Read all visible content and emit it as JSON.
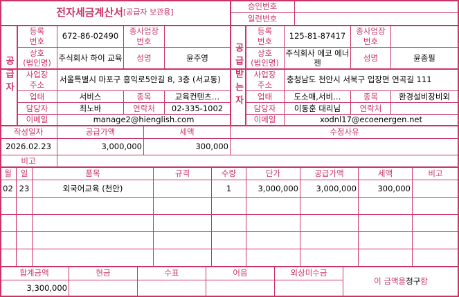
{
  "title": {
    "main": "전자세금계산서",
    "sub": "[공급자 보관용]"
  },
  "approval": {
    "approval_no_label": "승인번호",
    "approval_no": "",
    "serial_no_label": "일련번호",
    "serial_no": ""
  },
  "labels": {
    "reg_no": "등록\n번호",
    "sub_biz_no": "종사업장\n번호",
    "company": "상호\n(법인명)",
    "name": "성명",
    "address": "사업장\n주소",
    "biz_type": "업태",
    "biz_item": "종목",
    "manager": "담당자",
    "contact": "연락처",
    "email": "이메일"
  },
  "supplier": {
    "section_label": "공급자",
    "reg_no": "672-86-02490",
    "sub_biz_no": "",
    "company": "주식회사 하이 교육",
    "name": "윤주영",
    "address": "서울특별시 마포구 홍익로5안길 8, 3층 (서교동)",
    "biz_type": "서비스",
    "biz_item": "교육컨텐츠…",
    "manager": "최노바",
    "contact": "02-335-1002",
    "email": "manage2@hienglish.com"
  },
  "receiver": {
    "section_label": "공급받는자",
    "reg_no": "125-81-87417",
    "sub_biz_no": "",
    "company": "주식회사 에코 에너젠",
    "name": "윤종필",
    "address": "충청남도 천안시 서북구 입장면 연곡길 111",
    "biz_type": "도소매,서비…",
    "biz_item": "환경설비장비외",
    "manager": "이동훈 대리님",
    "contact": "",
    "email": "xodnl17@ecoenergen.net"
  },
  "summary": {
    "date_label": "작성일자",
    "supply_label": "공급가액",
    "tax_label": "세액",
    "reason_label": "수정사유",
    "date": "2026.02.23",
    "supply": "3,000,000",
    "tax": "300,000",
    "reason": "",
    "note_label": "비고",
    "note": ""
  },
  "items": {
    "headers": [
      "월",
      "일",
      "품목",
      "규격",
      "수량",
      "단가",
      "공급가액",
      "세액",
      "비고"
    ],
    "rows": [
      [
        "02",
        "23",
        "외국어교육 (천안)",
        "",
        "1",
        "3,000,000",
        "3,000,000",
        "300,000",
        ""
      ],
      [
        "",
        "",
        "",
        "",
        "",
        "",
        "",
        "",
        ""
      ],
      [
        "",
        "",
        "",
        "",
        "",
        "",
        "",
        "",
        ""
      ],
      [
        "",
        "",
        "",
        "",
        "",
        "",
        "",
        "",
        ""
      ],
      [
        "",
        "",
        "",
        "",
        "",
        "",
        "",
        "",
        ""
      ]
    ]
  },
  "totals": {
    "headers": [
      "합계금액",
      "현금",
      "수표",
      "어음",
      "외상미수금"
    ],
    "values": [
      "3,300,000",
      "",
      "",
      "",
      ""
    ],
    "claim_prefix": "이 금액을 ",
    "claim_word": "청구",
    "claim_suffix": "함"
  },
  "colors": {
    "accent": "#cc3366"
  }
}
